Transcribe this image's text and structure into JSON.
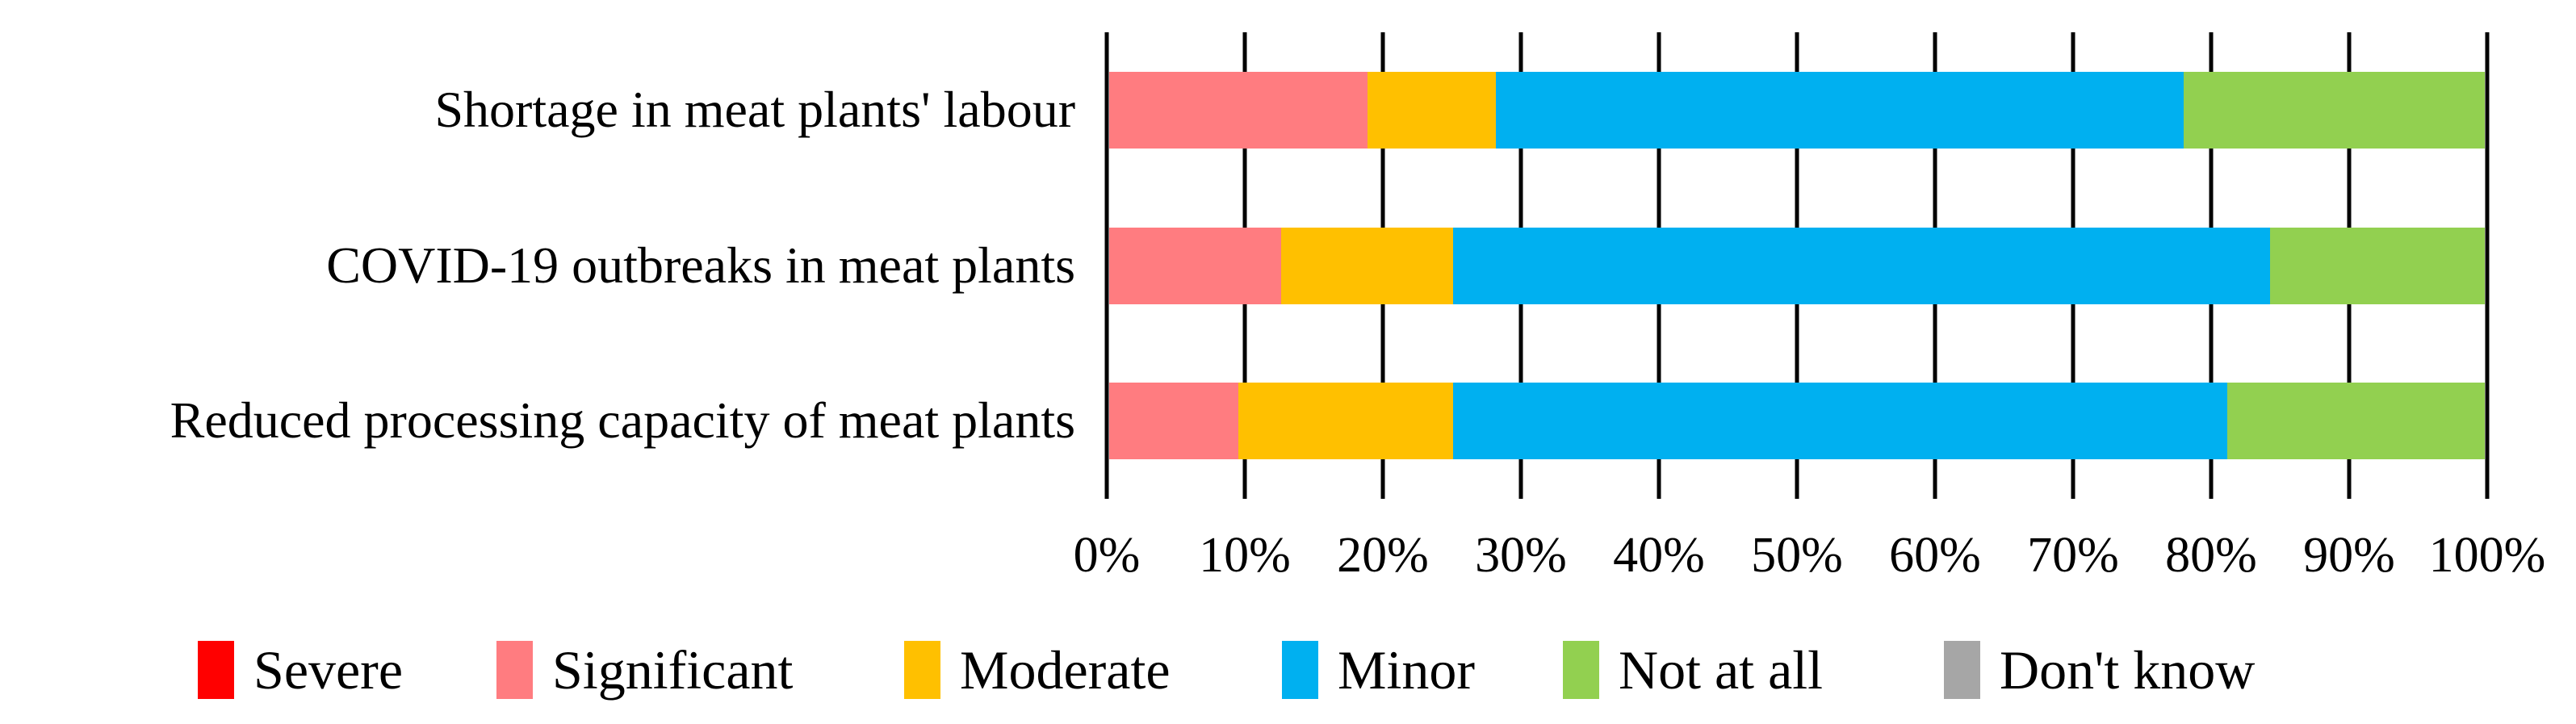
{
  "chart_data": {
    "type": "bar",
    "variant": "horizontal-stacked-100pct",
    "title": "",
    "xlabel": "",
    "ylabel": "",
    "xlim": [
      0,
      100
    ],
    "grid": "vertical",
    "legend_position": "bottom",
    "categories": [
      "Shortage in meat plants' labour",
      "COVID-19 outbreaks in meat plants",
      "Reduced processing capacity of meat plants"
    ],
    "series": [
      {
        "name": "Severe",
        "color": "#FF0000",
        "values": [
          0,
          0,
          0
        ]
      },
      {
        "name": "Significant",
        "color": "#FF7C80",
        "values": [
          18.75,
          12.5,
          9.375
        ]
      },
      {
        "name": "Moderate",
        "color": "#FFC000",
        "values": [
          9.375,
          12.5,
          15.625
        ]
      },
      {
        "name": "Minor",
        "color": "#00B0F0",
        "values": [
          50,
          59.375,
          56.25
        ]
      },
      {
        "name": "Not at all",
        "color": "#92D050",
        "values": [
          21.875,
          15.625,
          18.75
        ]
      },
      {
        "name": "Don't know",
        "color": "#A6A6A6",
        "values": [
          0,
          0,
          0
        ]
      }
    ],
    "x_ticks": [
      "0%",
      "10%",
      "20%",
      "30%",
      "40%",
      "50%",
      "60%",
      "70%",
      "80%",
      "90%",
      "100%"
    ],
    "colors": {
      "gridline": "#000000",
      "text": "#000000",
      "background": "#FFFFFF"
    }
  }
}
